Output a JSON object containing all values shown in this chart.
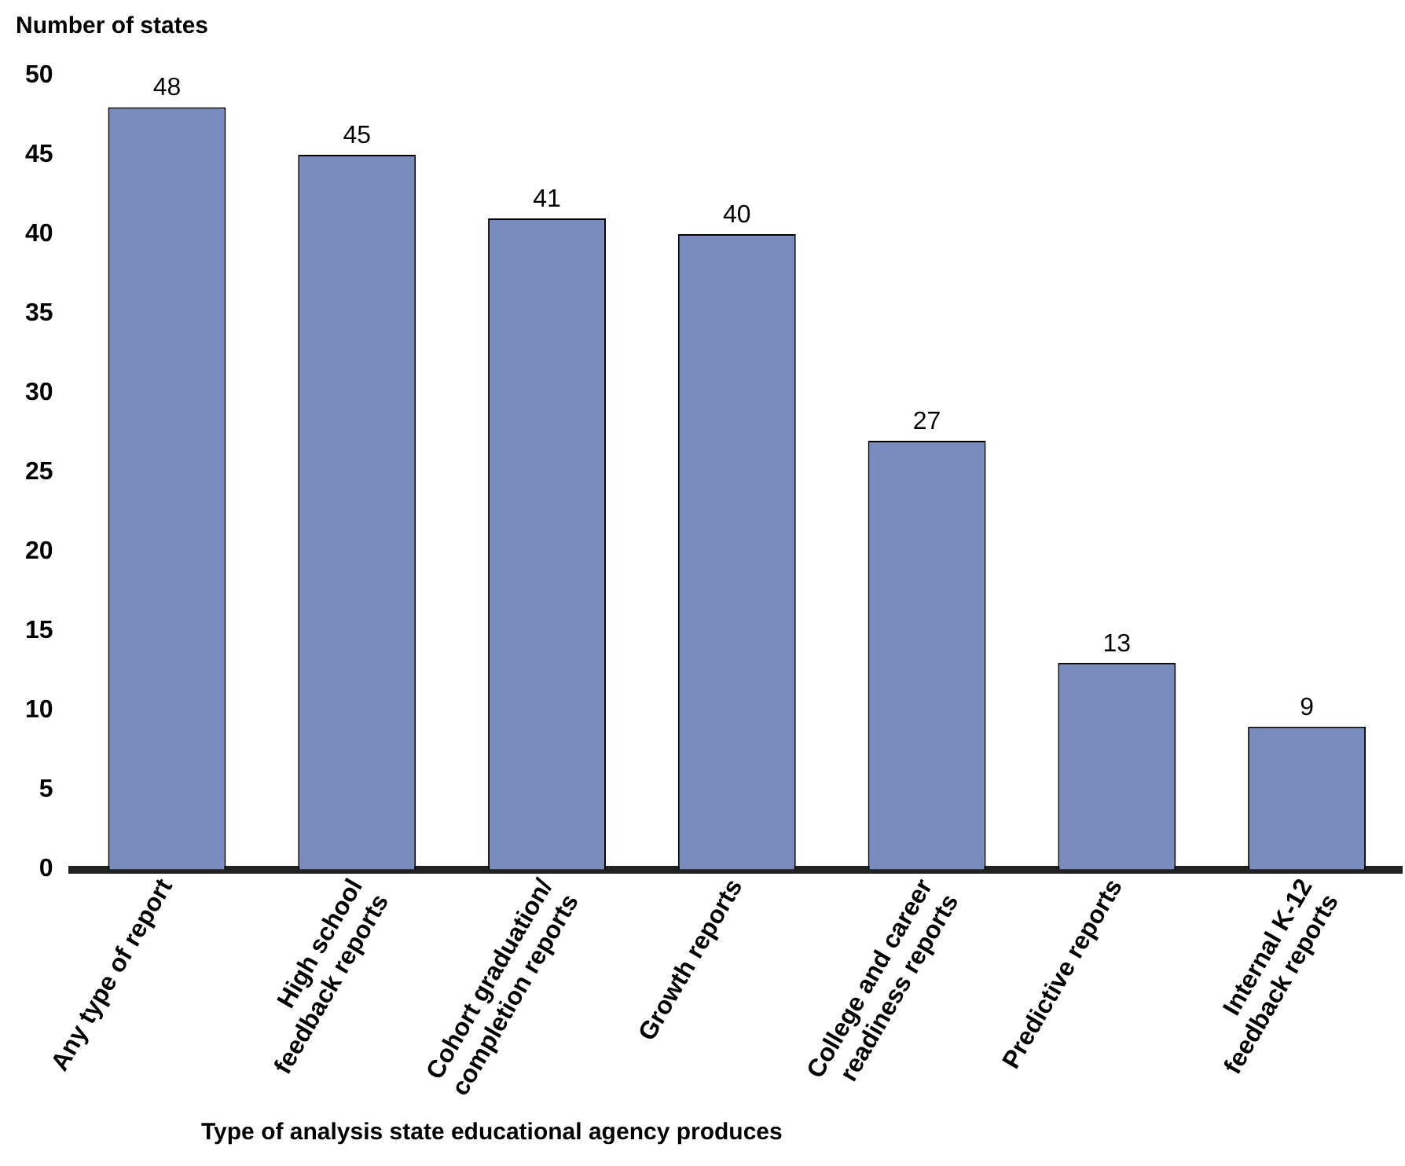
{
  "chart_data": {
    "type": "bar",
    "ylabel": "Number of states",
    "xlabel": "Type of analysis state educational agency produces",
    "categories": [
      "Any type of report",
      "High school feedback reports",
      "Cohort graduation/ completion reports",
      "Growth reports",
      "College and career readiness reports",
      "Predictive reports",
      "Internal K-12 feedback reports"
    ],
    "values": [
      48,
      45,
      41,
      40,
      27,
      13,
      9
    ],
    "color": "#7a8bbd",
    "ylim": [
      0,
      50
    ],
    "yticks": [
      0,
      5,
      10,
      15,
      20,
      25,
      30,
      35,
      40,
      45,
      50
    ],
    "grid": false,
    "legend": false,
    "data_labels": true
  }
}
